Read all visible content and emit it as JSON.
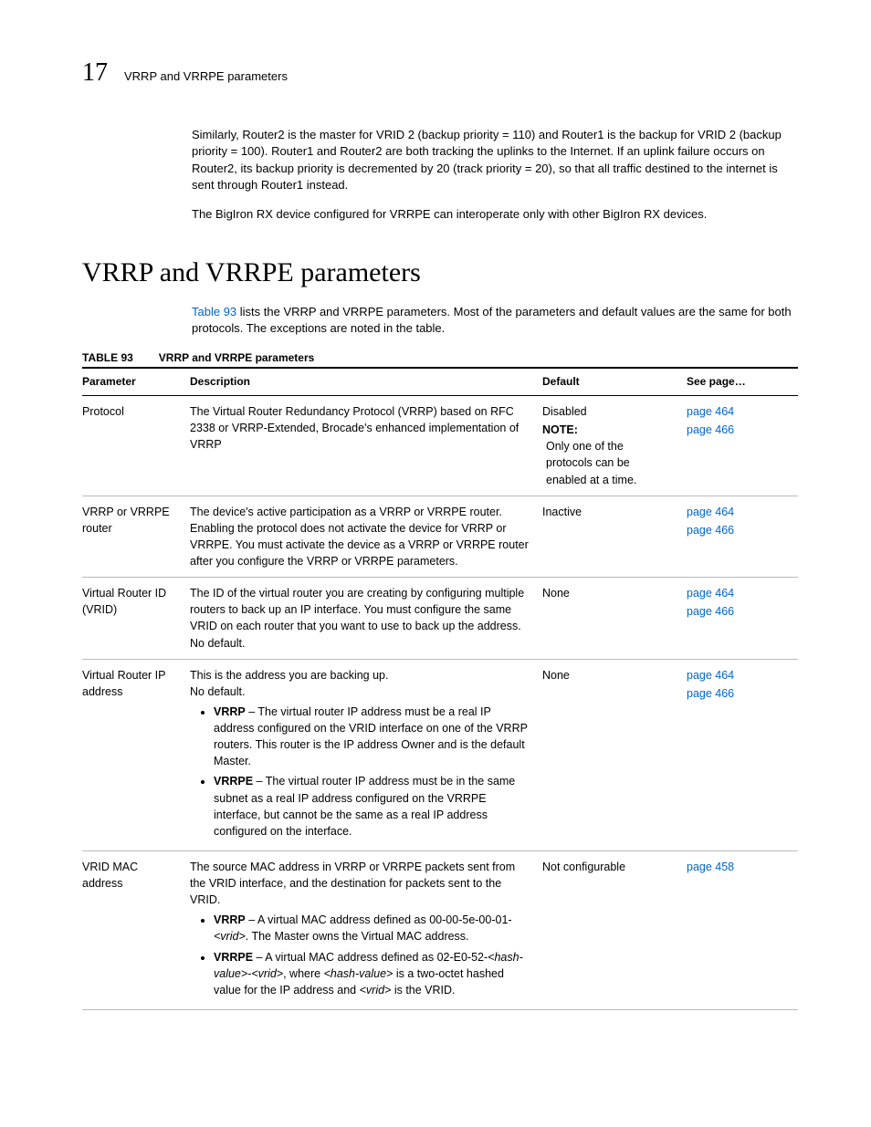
{
  "header": {
    "chapter_number": "17",
    "chapter_title": "VRRP and VRRPE parameters"
  },
  "paragraphs": {
    "p1": "Similarly, Router2 is the master for VRID 2 (backup priority = 110) and Router1 is the backup for VRID 2 (backup priority = 100).  Router1 and Router2 are both tracking the uplinks to the Internet. If an uplink failure occurs on Router2, its backup priority is decremented by 20 (track priority = 20), so that all traffic destined to the internet is sent through Router1 instead.",
    "p2": "The BigIron RX device configured for VRRPE can interoperate only with other BigIron RX devices."
  },
  "section_title": "VRRP and VRRPE parameters",
  "intro": {
    "link_text": "Table 93",
    "rest": " lists the VRRP and VRRPE parameters. Most of the parameters and default values are the same for both protocols. The exceptions are noted in the table."
  },
  "table": {
    "caption_number": "TABLE 93",
    "caption_title": "VRRP and VRRPE parameters",
    "headers": {
      "param": "Parameter",
      "desc": "Description",
      "def": "Default",
      "page": "See page…"
    },
    "rows": {
      "protocol": {
        "param": "Protocol",
        "desc": "The Virtual Router Redundancy Protocol (VRRP) based on RFC 2338 or VRRP-Extended, Brocade's enhanced implementation of VRRP",
        "def_line1": "Disabled",
        "def_note_label": "NOTE:",
        "def_note_body": "Only one of the protocols can be enabled at a time.",
        "page1": "page 464",
        "page2": "page 466"
      },
      "router": {
        "param": "VRRP or VRRPE router",
        "desc": "The device's active participation as a VRRP or VRRPE router. Enabling the protocol does not activate the device for VRRP or VRRPE. You must activate the device as a VRRP or VRRPE router after you configure the VRRP or VRRPE parameters.",
        "def": "Inactive",
        "page1": "page 464",
        "page2": "page 466"
      },
      "vrid": {
        "param": "Virtual Router ID (VRID)",
        "desc": "The ID of the virtual router you are creating by configuring multiple routers to back up an IP interface. You must configure the same VRID on each router that you want to use to back up the address. No default.",
        "def": "None",
        "page1": "page 464",
        "page2": "page 466"
      },
      "ip": {
        "param": "Virtual Router IP address",
        "desc_intro": "This is the address you are backing up.",
        "desc_nodef": "No default.",
        "b1_label": "VRRP",
        "b1_text": " – The virtual router IP address must be a real IP address configured on the VRID interface on one of the VRRP routers.  This router is the IP address Owner and is the default Master.",
        "b2_label": "VRRPE",
        "b2_text": " – The virtual router IP address must be in the same subnet as a real IP address configured on the VRRPE interface, but cannot be the same as a real IP address configured on the interface.",
        "def": "None",
        "page1": "page 464",
        "page2": "page 466"
      },
      "mac": {
        "param": "VRID MAC address",
        "desc_intro": "The source MAC address in VRRP or VRRPE packets sent from the VRID interface, and the destination for packets sent to the VRID.",
        "b1_label": "VRRP",
        "b1_pre": " – A virtual MAC address defined as 00-00-5e-00-01-",
        "b1_ital1": "<vrid>",
        "b1_post": ".  The Master owns the Virtual MAC address.",
        "b2_label": "VRRPE",
        "b2_pre": " – A virtual MAC address defined as 02-E0-52-",
        "b2_ital1": "<hash-value>",
        "b2_mid1": "-",
        "b2_ital2": "<vrid>",
        "b2_mid2": ", where ",
        "b2_ital3": "<hash-value>",
        "b2_mid3": " is a two-octet hashed value for the IP address and ",
        "b2_ital4": "<vrid>",
        "b2_post": " is the VRID.",
        "def": "Not configurable",
        "page1": "page 458"
      }
    }
  }
}
